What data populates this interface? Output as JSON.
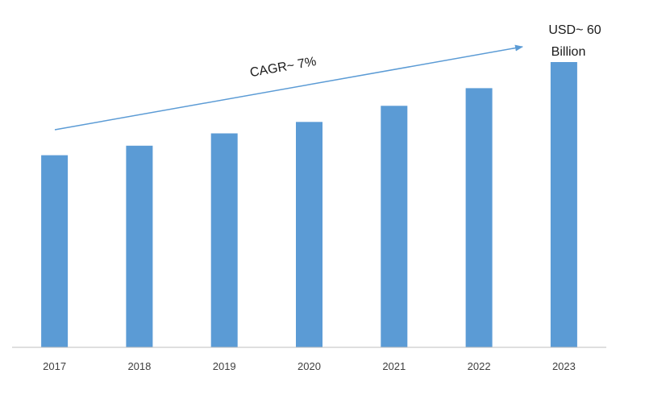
{
  "chart_data": {
    "type": "bar",
    "categories": [
      "2017",
      "2018",
      "2019",
      "2020",
      "2021",
      "2022",
      "2023"
    ],
    "values": [
      40.4,
      42.4,
      45.0,
      47.4,
      50.8,
      54.5,
      60.0
    ],
    "ylim": [
      0,
      60
    ],
    "bar_color": "#5b9bd5",
    "axis_color": "#bfbfbf",
    "grid": false,
    "annotations": {
      "cagr_label": "CAGR~ 7%",
      "end_value_line1": "USD~ 60",
      "end_value_line2": "Billion"
    }
  }
}
